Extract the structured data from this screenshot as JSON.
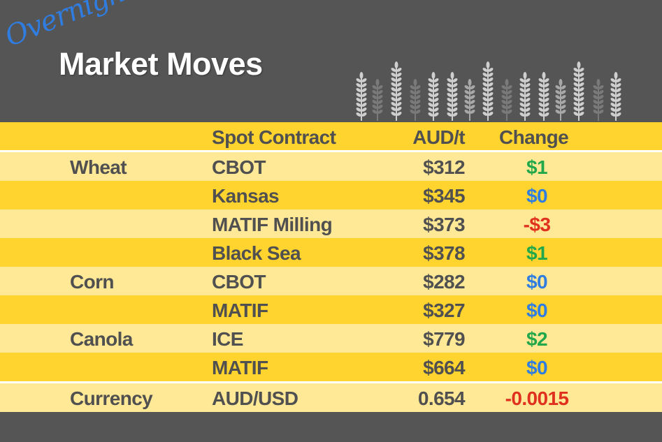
{
  "header": {
    "script_title": "Overnight",
    "title": "Market Moves",
    "decoration": "wheat-stalks-icon"
  },
  "colors": {
    "background": "#555555",
    "header_row": "#FFD42E",
    "row_light": "#FFE996",
    "row_dark": "#FFD42E",
    "up": "#22a84a",
    "flat": "#2f7de1",
    "down": "#e0301e"
  },
  "table": {
    "columns": [
      "",
      "Spot Contract",
      "AUD/t",
      "Change"
    ],
    "rows": [
      {
        "commodity": "Wheat",
        "contract": "CBOT",
        "price": "$312",
        "change": "$1",
        "dir": "up"
      },
      {
        "commodity": "",
        "contract": "Kansas",
        "price": "$345",
        "change": "$0",
        "dir": "flat"
      },
      {
        "commodity": "",
        "contract": "MATIF Milling",
        "price": "$373",
        "change": "-$3",
        "dir": "down"
      },
      {
        "commodity": "",
        "contract": "Black Sea",
        "price": "$378",
        "change": "$1",
        "dir": "up"
      },
      {
        "commodity": "Corn",
        "contract": "CBOT",
        "price": "$282",
        "change": "$0",
        "dir": "flat"
      },
      {
        "commodity": "",
        "contract": "MATIF",
        "price": "$327",
        "change": "$0",
        "dir": "flat"
      },
      {
        "commodity": "Canola",
        "contract": "ICE",
        "price": "$779",
        "change": "$2",
        "dir": "up"
      },
      {
        "commodity": "",
        "contract": "MATIF",
        "price": "$664",
        "change": "$0",
        "dir": "flat"
      },
      {
        "commodity": "Currency",
        "contract": "AUD/USD",
        "price": "0.654",
        "change": "-0.0015",
        "dir": "down"
      }
    ]
  }
}
